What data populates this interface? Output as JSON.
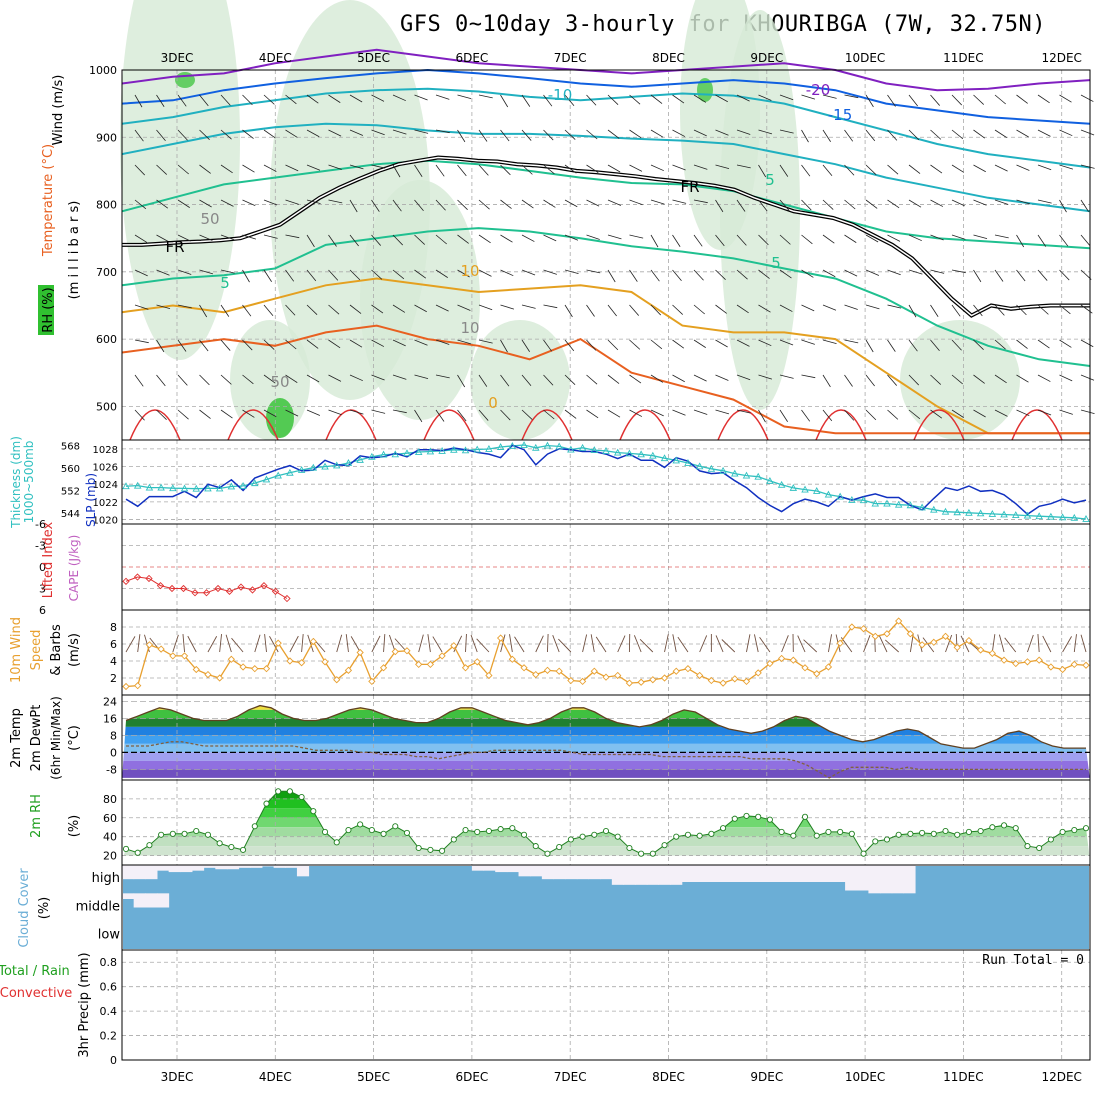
{
  "title": "GFS 0~10day 3-hourly for KHOURIBGA (7W, 32.75N)",
  "dates": [
    "3DEC",
    "4DEC",
    "5DEC",
    "6DEC",
    "7DEC",
    "8DEC",
    "9DEC",
    "10DEC",
    "11DEC",
    "12DEC"
  ],
  "colors": {
    "temp_warm": "#e4a020",
    "temp_hot": "#e86020",
    "temp_red": "#e03030",
    "temp_cyan": "#20b0c0",
    "temp_teal": "#20c090",
    "temp_blue": "#1060e0",
    "temp_violet": "#8020c0",
    "rh_green": "#30c030",
    "slp": "#1030c0",
    "thickness": "#30c0c0",
    "wind_speed": "#e8a030",
    "barb": "#705040",
    "cloud": "#6baed6",
    "cloud_clear": "#f4f0f8"
  },
  "panels": {
    "upper": {
      "ylabels": [
        "Wind (m/s)",
        "Temperature (°C)",
        "RH (%)",
        "(m i l l i b a r s)"
      ],
      "yticks": [
        500,
        600,
        700,
        800,
        900,
        1000
      ],
      "contour_labels": [
        "-20",
        "-15",
        "-10",
        "5",
        "FR",
        "FR",
        "5",
        "5",
        "10",
        "0",
        "50",
        "10",
        "50"
      ]
    },
    "slp": {
      "ylabels": [
        "Thickness (dm)",
        "1000~500mb",
        "SLP (mb)"
      ],
      "thickness_ticks": [
        544,
        552,
        560,
        568
      ],
      "slp_ticks": [
        1020,
        1022,
        1024,
        1026,
        1028
      ]
    },
    "li": {
      "ylabels": [
        "Lifted Index",
        "CAPE (J/kg)"
      ],
      "yticks": [
        -6,
        -3,
        0,
        3,
        6
      ]
    },
    "wind": {
      "ylabels": [
        "10m Wind",
        "Speed",
        "& Barbs",
        "(m/s)"
      ],
      "yticks": [
        2,
        4,
        6,
        8
      ]
    },
    "temp": {
      "ylabels": [
        "2m Temp",
        "2m DewPt",
        "(6hr Min/Max)",
        "(°C)"
      ],
      "yticks": [
        -8,
        0,
        8,
        16,
        24
      ]
    },
    "rh": {
      "ylabels": [
        "2m RH",
        "(%)"
      ],
      "yticks": [
        20,
        40,
        60,
        80
      ]
    },
    "cloud": {
      "ylabels": [
        "Cloud Cover",
        "(%)"
      ],
      "levels": [
        "high",
        "middle",
        "low"
      ]
    },
    "precip": {
      "ylabels": [
        "Total / Rain",
        "Convective",
        "3hr Precip (mm)"
      ],
      "yticks": [
        0,
        0.2,
        0.4,
        0.6,
        0.8
      ],
      "run_total": "Run Total = 0"
    }
  },
  "chart_data": {
    "type": "line",
    "x_unit": "time step (3-hourly) from 2 Dec 12Z",
    "slp_mb": [
      1022.3,
      1021.5,
      1022.6,
      1022.6,
      1022.6,
      1023.2,
      1022.5,
      1024.0,
      1023.6,
      1024.5,
      1023.3,
      1024.7,
      1025.2,
      1025.7,
      1026.1,
      1025.5,
      1025.6,
      1026.7,
      1026.2,
      1026.1,
      1027.2,
      1027.0,
      1027.1,
      1027.5,
      1027.1,
      1027.9,
      1027.9,
      1027.8,
      1028.1,
      1027.9,
      1027.6,
      1027.4,
      1027.0,
      1028.4,
      1027.9,
      1026.2,
      1027.4,
      1028.0,
      1027.9,
      1027.7,
      1027.7,
      1027.4,
      1026.9,
      1027.4,
      1026.7,
      1026.7,
      1025.9,
      1027.0,
      1026.6,
      1025.5,
      1025.2,
      1025.3,
      1024.4,
      1023.6,
      1022.5,
      1021.6,
      1020.9,
      1021.8,
      1022.3,
      1022.0,
      1021.5,
      1022.6,
      1022.2,
      1022.6,
      1022.9,
      1022.5,
      1022.5,
      1021.6,
      1021.1,
      1022.4,
      1023.6,
      1023.3,
      1023.8,
      1023.2,
      1023.3,
      1022.8,
      1021.8,
      1020.6,
      1021.5,
      1021.8,
      1022.3,
      1021.9,
      1022.2
    ],
    "thickness_dm": [
      553.5,
      553.7,
      553.0,
      553.0,
      552.8,
      552.7,
      552.6,
      552.7,
      552.7,
      553.4,
      553.6,
      554.6,
      555.9,
      557.3,
      558.3,
      559.3,
      560.1,
      560.5,
      560.9,
      561.8,
      562.9,
      564.0,
      564.8,
      564.9,
      565.3,
      565.7,
      565.9,
      566.1,
      566.5,
      566.3,
      566.6,
      566.8,
      567.5,
      567.9,
      568.2,
      567.2,
      568.0,
      567.7,
      566.6,
      567.2,
      566.4,
      566.1,
      565.5,
      565.2,
      564.9,
      564.4,
      563.5,
      562.7,
      561.8,
      560.6,
      559.7,
      559.0,
      558.0,
      557.3,
      556.9,
      555.4,
      554.0,
      552.9,
      552.3,
      551.8,
      550.5,
      549.8,
      548.6,
      548.5,
      547.3,
      547.3,
      546.9,
      546.7,
      545.9,
      545.1,
      544.4,
      544.2,
      544.0,
      543.8,
      543.6,
      543.4,
      543.2,
      543.0,
      542.8,
      542.6,
      542.4,
      542.2,
      541.8
    ],
    "lifted_index": [
      2.0,
      1.4,
      1.6,
      2.6,
      3.0,
      3.0,
      3.6,
      3.6,
      3.0,
      3.4,
      2.8,
      3.2,
      2.6,
      3.4,
      4.4
    ],
    "wind_speed_ms": [
      1.0,
      1.1,
      5.9,
      5.4,
      4.6,
      4.6,
      3.0,
      2.4,
      2.0,
      4.2,
      3.3,
      3.1,
      3.1,
      6.1,
      4.0,
      3.8,
      6.3,
      3.9,
      1.8,
      2.9,
      5.0,
      1.6,
      3.2,
      5.1,
      5.2,
      3.6,
      3.6,
      4.6,
      5.8,
      3.2,
      3.9,
      2.3,
      6.7,
      4.2,
      3.2,
      2.4,
      2.9,
      2.8,
      1.7,
      1.6,
      2.8,
      2.1,
      2.3,
      1.4,
      1.5,
      1.8,
      2.0,
      2.8,
      3.1,
      2.3,
      1.7,
      1.4,
      1.9,
      1.6,
      2.6,
      3.7,
      4.3,
      4.1,
      3.2,
      2.5,
      3.3,
      6.1,
      8.0,
      7.8,
      6.9,
      7.2,
      8.7,
      7.2,
      5.9,
      6.2,
      6.9,
      5.6,
      6.4,
      5.3,
      4.9,
      4.1,
      3.7,
      3.9,
      4.1,
      3.3,
      3.0,
      3.6,
      3.5
    ],
    "temp_2m_c": [
      15,
      17,
      19,
      21,
      20,
      18,
      16,
      15,
      15,
      15,
      17,
      20,
      22,
      21,
      18,
      16,
      15,
      15,
      16,
      18,
      20,
      21,
      20,
      18,
      16,
      15,
      14,
      14,
      16,
      19,
      21,
      21,
      19,
      17,
      15,
      14,
      13,
      14,
      16,
      19,
      21,
      21,
      19,
      16,
      14,
      13,
      12,
      13,
      15,
      18,
      20,
      19,
      16,
      13,
      11,
      10,
      9,
      10,
      12,
      15,
      17,
      16,
      13,
      10,
      8,
      6,
      5,
      6,
      8,
      10,
      11,
      10,
      7,
      4,
      3,
      2,
      2,
      4,
      6,
      9,
      10,
      8,
      5,
      3,
      2,
      2,
      2
    ],
    "dewpt_2m_c": [
      3,
      3,
      3,
      4,
      5,
      5,
      4,
      3,
      3,
      3,
      3,
      3,
      3,
      3,
      3,
      3,
      2,
      1,
      1,
      1,
      1,
      0,
      0,
      -1,
      -1,
      -1,
      -2,
      -2,
      -3,
      -2,
      -1,
      0,
      0,
      1,
      1,
      1,
      1,
      1,
      1,
      1,
      0,
      -1,
      -1,
      -1,
      -1,
      -1,
      -1,
      -1,
      -2,
      -2,
      -2,
      -2,
      -2,
      -2,
      -2,
      -2,
      -3,
      -3,
      -3,
      -3,
      -4,
      -6,
      -9,
      -12,
      -9,
      -7,
      -7,
      -7,
      -7,
      -8,
      -7,
      -8,
      -8,
      -8,
      -8,
      -8,
      -8,
      -8,
      -8,
      -8,
      -8,
      -8,
      -8,
      -8,
      -8,
      -8,
      -8
    ],
    "rh_2m_pct": [
      27,
      23,
      31,
      42,
      43,
      43,
      46,
      42,
      33,
      29,
      26,
      51,
      75,
      88,
      88,
      82,
      67,
      45,
      34,
      47,
      53,
      47,
      43,
      51,
      44,
      28,
      26,
      25,
      37,
      47,
      45,
      46,
      48,
      49,
      42,
      30,
      22,
      29,
      37,
      40,
      42,
      46,
      40,
      28,
      22,
      22,
      31,
      40,
      42,
      41,
      43,
      49,
      59,
      62,
      61,
      58,
      45,
      41,
      61,
      41,
      45,
      45,
      43,
      22,
      35,
      37,
      42,
      43,
      44,
      43,
      46,
      42,
      45,
      46,
      50,
      52,
      49,
      30,
      28,
      37,
      45,
      47,
      49
    ],
    "cloud_high_pct": [
      50,
      50,
      50,
      80,
      75,
      75,
      80,
      90,
      85,
      85,
      90,
      90,
      95,
      90,
      90,
      60,
      100,
      100,
      100,
      100,
      100,
      100,
      100,
      100,
      100,
      100,
      100,
      100,
      100,
      100,
      80,
      80,
      75,
      75,
      60,
      60,
      50,
      50,
      50,
      50,
      50,
      50,
      30,
      30,
      30,
      30,
      30,
      30,
      40,
      40,
      40,
      40,
      40,
      40,
      40,
      40,
      40,
      40,
      40,
      40,
      40,
      40,
      10,
      10,
      0,
      0,
      0,
      0,
      100,
      100,
      100,
      100,
      100,
      100,
      100,
      100,
      100,
      100,
      100,
      100,
      100,
      100,
      100
    ],
    "cloud_mid_pct": [
      80,
      50,
      50,
      50,
      100,
      100,
      100,
      100,
      100,
      100,
      100,
      100,
      100,
      100,
      100,
      100,
      100,
      100,
      100,
      100,
      100,
      100,
      100,
      100,
      100,
      100,
      100,
      100,
      100,
      100,
      100,
      100,
      100,
      100,
      100,
      100,
      100,
      100,
      100,
      100,
      100,
      100,
      100,
      100,
      100,
      100,
      100,
      100,
      100,
      100,
      100,
      100,
      100,
      100,
      100,
      100,
      100,
      100,
      100,
      100,
      100,
      100,
      100,
      100,
      100,
      100,
      100,
      100,
      100,
      100,
      100,
      100,
      100,
      100,
      100,
      100,
      100,
      100,
      100,
      100,
      100,
      100,
      100
    ],
    "cloud_low_pct": [
      100,
      100,
      100,
      100,
      100,
      100,
      100,
      100,
      100,
      100,
      100,
      100,
      100,
      100,
      100,
      100,
      100,
      100,
      100,
      100,
      100,
      100,
      100,
      100,
      100,
      100,
      100,
      100,
      100,
      100,
      100,
      100,
      100,
      100,
      100,
      100,
      100,
      100,
      100,
      100,
      100,
      100,
      100,
      100,
      100,
      100,
      100,
      100,
      100,
      100,
      100,
      100,
      100,
      100,
      100,
      100,
      100,
      100,
      100,
      100,
      100,
      100,
      100,
      100,
      100,
      100,
      100,
      100,
      100,
      100,
      100,
      100,
      100,
      100,
      100,
      100,
      100,
      100,
      100,
      100,
      100,
      100,
      100
    ],
    "precip_mm": [
      0,
      0,
      0,
      0,
      0,
      0,
      0,
      0,
      0,
      0
    ],
    "freezing_level_mb": [
      710,
      710,
      708,
      706,
      705,
      703,
      700,
      690,
      680,
      660,
      640,
      625,
      612,
      600,
      590,
      585,
      580,
      582,
      585,
      586,
      590,
      592,
      595,
      600,
      602,
      605,
      608,
      612,
      615,
      618,
      622,
      628,
      640,
      650,
      660,
      665,
      670,
      680,
      695,
      710,
      730,
      760,
      790,
      815,
      800,
      805,
      802,
      800,
      800,
      800
    ],
    "contour_levels": [
      -20,
      -15,
      -10,
      -5,
      0,
      5,
      10,
      15
    ]
  }
}
